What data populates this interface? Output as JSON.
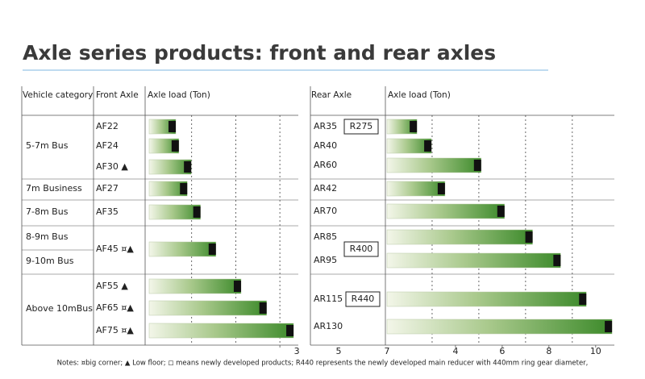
{
  "title": "Axle series products: front and rear axles",
  "notes": "Notes: ¤big corner; ▲ Low floor; ◻ means newly developed products; R440 represents the newly developed main reducer with 440mm ring gear diameter,",
  "stray_labels": [
    "5",
    "7"
  ],
  "front": {
    "headers": [
      "Vehicle category",
      "Front Axle",
      "Axle load (Ton)"
    ],
    "categories": [
      "5-7m Bus",
      "7m Business",
      "7-8m Bus",
      "8-9m Bus",
      "9-10m Bus",
      "Above 10mBus"
    ],
    "rows": [
      {
        "axle": "AF22",
        "load": 0.64
      },
      {
        "axle": "AF24",
        "load": 0.71
      },
      {
        "axle": "AF30 ▲",
        "load": 0.99
      },
      {
        "axle": "AF27",
        "load": 0.9
      },
      {
        "axle": "AF35",
        "load": 1.2
      },
      {
        "axle": "AF45 ¤▲",
        "load": 1.55
      },
      {
        "axle": "AF55 ▲",
        "load": 2.12
      },
      {
        "axle": "AF65 ¤▲",
        "load": 2.7
      },
      {
        "axle": "AF75 ¤▲",
        "load": 3.31
      }
    ],
    "xlim": [
      0,
      3.4
    ],
    "xticks": [
      3
    ],
    "grid": [
      1,
      2,
      3
    ]
  },
  "rear": {
    "headers": [
      "Rear Axle",
      "Axle load (Ton)"
    ],
    "rows": [
      {
        "axle": "AR35",
        "load": 2.35
      },
      {
        "axle": "AR40",
        "load": 2.97
      },
      {
        "axle": "AR60",
        "load": 5.1
      },
      {
        "axle": "AR42",
        "load": 3.55
      },
      {
        "axle": "AR70",
        "load": 6.1
      },
      {
        "axle": "AR85",
        "load": 7.3
      },
      {
        "axle": "AR95",
        "load": 8.5
      },
      {
        "axle": "AR115",
        "load": 9.6
      },
      {
        "axle": "AR130",
        "load": 10.7
      }
    ],
    "reducers": [
      "R275",
      "R400",
      "R440"
    ],
    "xlim": [
      1,
      10.8
    ],
    "xticks": [
      4,
      6,
      8,
      10
    ],
    "grid": [
      3,
      5,
      7,
      9
    ]
  }
}
